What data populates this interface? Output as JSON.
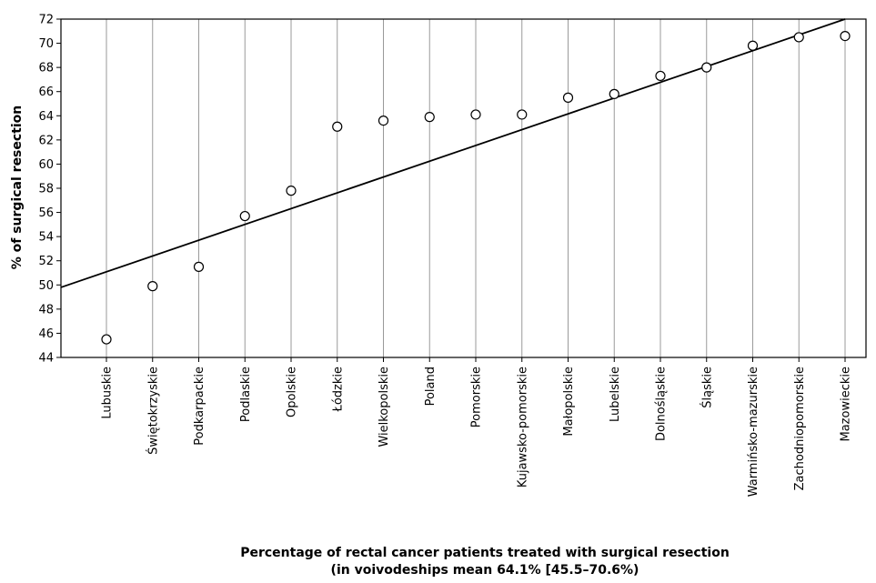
{
  "chart_data": {
    "type": "scatter",
    "ylabel": "% of surgical resection",
    "xlabel_line1": "Percentage of rectal cancer patients treated with surgical resection",
    "xlabel_line2": "(in voivodeships mean 64.1% [45.5–70.6%)",
    "ylim": [
      44,
      72
    ],
    "ytick_step": 2,
    "grid": "vertical",
    "categories": [
      "Lubuskie",
      "Świętokrzyskie",
      "Podkarpackie",
      "Podlaskie",
      "Opolskie",
      "Łódzkie",
      "Wielkopolskie",
      "Poland",
      "Pomorskie",
      "Kujawsko-pomorskie",
      "Małopolskie",
      "Lubelskie",
      "Dolnośląskie",
      "Śląskie",
      "Warmińsko-mazurskie",
      "Zachodniopomorskie",
      "Mazowieckie"
    ],
    "values": [
      45.5,
      49.9,
      51.5,
      55.7,
      57.8,
      63.1,
      63.6,
      63.9,
      64.1,
      64.1,
      65.5,
      65.8,
      67.3,
      68.0,
      69.8,
      70.5,
      70.6
    ],
    "trendline": {
      "y_at_left_edge": 49.8,
      "y_at_category_16": 72.0
    }
  }
}
